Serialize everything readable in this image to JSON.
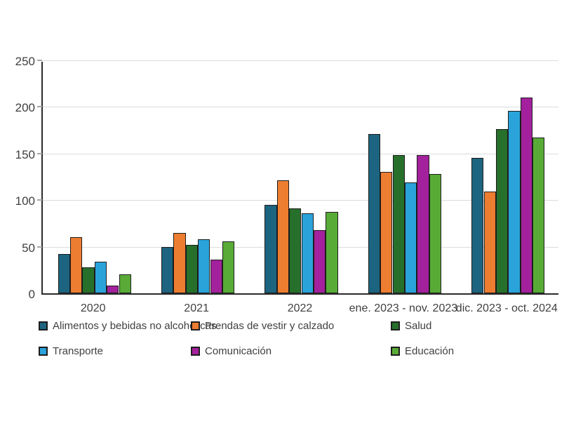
{
  "chart_data": {
    "type": "bar",
    "title": "",
    "xlabel": "",
    "ylabel": "",
    "categories": [
      "2020",
      "2021",
      "2022",
      "ene. 2023 - nov. 2023",
      "dic. 2023 - oct. 2024"
    ],
    "series": [
      {
        "name": "Alimentos y bebidas no alcohólicas",
        "color": "#1d6480",
        "values": [
          42,
          50,
          95,
          171,
          145
        ]
      },
      {
        "name": "Prendas de vestir y calzado",
        "color": "#ed7d31",
        "values": [
          60,
          65,
          121,
          130,
          109
        ]
      },
      {
        "name": "Salud",
        "color": "#27702b",
        "values": [
          28,
          52,
          91,
          148,
          176
        ]
      },
      {
        "name": "Transporte",
        "color": "#2aa3db",
        "values": [
          34,
          58,
          86,
          119,
          196
        ]
      },
      {
        "name": "Comunicación",
        "color": "#a3219c",
        "values": [
          8,
          36,
          68,
          148,
          210
        ]
      },
      {
        "name": "Educación",
        "color": "#58ab37",
        "values": [
          20,
          56,
          87,
          128,
          167
        ]
      }
    ],
    "ylim": [
      0,
      250
    ],
    "yticks": [
      0,
      50,
      100,
      150,
      200,
      250
    ],
    "grid": true,
    "legend_position": "bottom",
    "colors": {
      "bar_border": "#1d1d1d",
      "grid": "#dcdcdc",
      "axis": "#2b2b2b",
      "text": "#404040",
      "background": "#ffffff"
    }
  }
}
